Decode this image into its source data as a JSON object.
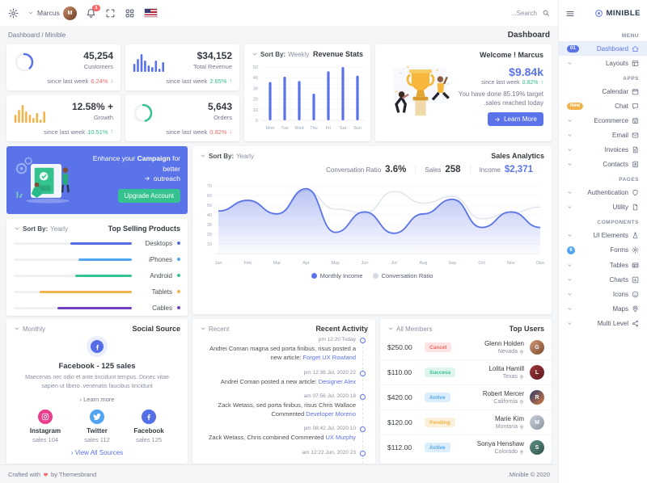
{
  "brand": {
    "name": "MINIBLE"
  },
  "topbar": {
    "search_placeholder": "...Search",
    "user_name": "Marcus",
    "notification_count": "3"
  },
  "breadcrumb": {
    "path": "Dashboard / Minible"
  },
  "page": {
    "title": "Dashboard"
  },
  "colors": {
    "primary": "#5b73e8",
    "success": "#34c38f",
    "danger": "#f46a6a",
    "warning": "#f1b44c",
    "info": "#50a5f1"
  },
  "stats": {
    "cards": [
      {
        "value": "45,254",
        "label": "Customers",
        "since": "since last week",
        "delta": "6.24%",
        "direction": "down",
        "chart": {
          "type": "radial",
          "percent": 38,
          "color": "#5b73e8"
        }
      },
      {
        "value": "$34,152",
        "label": "Total Revenue",
        "since": "since last week",
        "delta": "2.65%",
        "direction": "up",
        "chart": {
          "type": "bars",
          "color": "#5b73e8",
          "values": [
            5,
            8,
            11,
            7,
            4,
            3,
            7,
            2,
            6
          ]
        }
      },
      {
        "value": "12.58% +",
        "label": "Growth",
        "since": "since last week",
        "delta": "10.51%",
        "direction": "up",
        "chart": {
          "type": "bars",
          "color": "#f1b44c",
          "values": [
            5,
            8,
            11,
            7,
            5,
            3,
            6,
            2,
            7
          ]
        }
      },
      {
        "value": "5,643",
        "label": "Orders",
        "since": "since last week",
        "delta": "0.82%",
        "direction": "down",
        "chart": {
          "type": "radial",
          "percent": 45,
          "color": "#34c38f"
        }
      }
    ]
  },
  "revenue_stats": {
    "title": "Revenue Stats",
    "sort_by": "Sort By:",
    "sort_value": "Weekly"
  },
  "welcome": {
    "title": "Welcome ! Marcus",
    "amount": "$9.84k",
    "since": "since last week",
    "delta": "0.82%",
    "line1": "You have done 85.19% target",
    "line2": ".sales reached today",
    "button_label": "Learn More"
  },
  "campaign": {
    "text_pre": "Enhance your",
    "text_bold": "Campaign",
    "text_post": "for better",
    "text_line2": "outreach",
    "button_label": "Upgrade Account"
  },
  "top_selling": {
    "title": "Top Selling Products",
    "sort_by": "Sort By:",
    "sort_value": "Yearly",
    "products": [
      {
        "name": "Desktops",
        "pct": 52,
        "color": "#556ee6"
      },
      {
        "name": "iPhones",
        "pct": 45,
        "color": "#50a5f1"
      },
      {
        "name": "Android",
        "pct": 48,
        "color": "#34c38f"
      },
      {
        "name": "Tablets",
        "pct": 78,
        "color": "#f1b44c"
      },
      {
        "name": "Cables",
        "pct": 63,
        "color": "#6f42c1"
      }
    ]
  },
  "sales_analytics": {
    "title": "Sales Analytics",
    "sort_by": "Sort By:",
    "sort_value": "Yearly",
    "metrics": [
      {
        "label": "Conversation Ratio",
        "value": "3.6%"
      },
      {
        "label": "Sales",
        "value": "258"
      },
      {
        "label": "Income",
        "value": "$2,371"
      }
    ]
  },
  "social": {
    "title": "Social Source",
    "sort_value": "Monthly",
    "headline": "Facebook - 125 sales",
    "description": "Maecenas nec odio et ante tincidunt tempus. Donec vitae sapien ut libero .venenatis faucibus tincidunt",
    "learn_more": "Learn more",
    "view_all": "View All Sources",
    "networks": [
      {
        "name": "Instagram",
        "sales": "sales 104",
        "color": "#e83e8c",
        "icon": "instagram"
      },
      {
        "name": "Twitter",
        "sales": "sales 112",
        "color": "#50a5f1",
        "icon": "twitter"
      },
      {
        "name": "Facebook",
        "sales": "sales 125",
        "color": "#556ee6",
        "icon": "facebook"
      }
    ]
  },
  "activity": {
    "title": "Recent Activity",
    "sort_value": "Recent",
    "items": [
      {
        "time": "pm 12:20 Today",
        "text": "Andrei Coman magna sed porta finibus, risus posted a new article:",
        "link": "Forget UX Rowland"
      },
      {
        "time": "pm 12:36 Jul, 2020 22",
        "text": "Andrei Coman posted a new article:",
        "link": "Designer Alex"
      },
      {
        "time": "am 07:56 Jul, 2020 18",
        "text": "Zack Wetass, sed porta finibus, risus Chris Wallace Commented",
        "link": "Developer Moreno"
      },
      {
        "time": "pm 08:42 Jul, 2020 10",
        "text": "Zack Wetass, Chris combined Commented",
        "link": "UX Murphy"
      },
      {
        "time": "am 12:22 Jun, 2020 23",
        "text": "",
        "link": ""
      }
    ]
  },
  "top_users": {
    "title": "Top Users",
    "sort_value": "All Members",
    "rows": [
      {
        "amount": "$250.00",
        "status": "Cancel",
        "status_type": "danger",
        "name": "Glenn Holden",
        "location": "Nevada"
      },
      {
        "amount": "$110.00",
        "status": "Success",
        "status_type": "success",
        "name": "Lolita Hamill",
        "location": "Texas"
      },
      {
        "amount": "$420.00",
        "status": "Active",
        "status_type": "info",
        "name": "Robert Mercer",
        "location": "California"
      },
      {
        "amount": "$120.00",
        "status": "Pending",
        "status_type": "warning",
        "name": "Marie Kim",
        "location": "Montana"
      },
      {
        "amount": "$112.00",
        "status": "Active",
        "status_type": "info",
        "name": "Sonya Henshaw",
        "location": "Colorado"
      }
    ]
  },
  "sidebar": {
    "sections": [
      {
        "label": "MENU",
        "items": [
          {
            "label": "Dashboard",
            "icon": "home",
            "active": true,
            "badge": {
              "text": "01",
              "type": "pill-primary"
            }
          },
          {
            "label": "Layouts",
            "icon": "layout",
            "chevron": true
          }
        ]
      },
      {
        "label": "APPS",
        "items": [
          {
            "label": "Calendar",
            "icon": "calendar"
          },
          {
            "label": "Chat",
            "icon": "chat",
            "badge": {
              "text": "New",
              "type": "pill-warning"
            }
          },
          {
            "label": "Ecommerce",
            "icon": "store",
            "chevron": true
          },
          {
            "label": "Email",
            "icon": "mail",
            "chevron": true
          },
          {
            "label": "Invoices",
            "icon": "invoice",
            "chevron": true
          },
          {
            "label": "Contacts",
            "icon": "contacts",
            "chevron": true
          }
        ]
      },
      {
        "label": "PAGES",
        "items": [
          {
            "label": "Authentication",
            "icon": "shield",
            "chevron": true
          },
          {
            "label": "Utility",
            "icon": "file",
            "chevron": true
          }
        ]
      },
      {
        "label": "COMPONENTS",
        "items": [
          {
            "label": "UI Elements",
            "icon": "beaker",
            "chevron": true
          },
          {
            "label": "Forms",
            "icon": "gear",
            "badge": {
              "text": "6",
              "type": "circle-info"
            }
          },
          {
            "label": "Tables",
            "icon": "table",
            "chevron": true
          },
          {
            "label": "Charts",
            "icon": "chart",
            "chevron": true
          },
          {
            "label": "Icons",
            "icon": "smile",
            "chevron": true
          },
          {
            "label": "Maps",
            "icon": "map-pin",
            "chevron": true
          },
          {
            "label": "Multi Level",
            "icon": "share",
            "chevron": true
          }
        ]
      }
    ]
  },
  "footer": {
    "left_pre": "Crafted with",
    "left_post": "by Themesbrand",
    "right": ".Minible © 2020"
  },
  "chart_data": [
    {
      "id": "revenue-stats",
      "type": "bar",
      "title": "Revenue Stats",
      "categories": [
        "Mon",
        "Tue",
        "Wed",
        "Thu",
        "Fri",
        "Sat",
        "Sun"
      ],
      "values": [
        36,
        41,
        37,
        25,
        46,
        50,
        42
      ],
      "ylim": [
        0,
        50
      ],
      "yticks": [
        0,
        10,
        20,
        30,
        40,
        50
      ],
      "color": "#5b73e8",
      "grid": true
    },
    {
      "id": "sales-analytics",
      "type": "area",
      "title": "Sales Analytics",
      "x": [
        "Jan",
        "Feb",
        "Mar",
        "Apr",
        "May",
        "Jun",
        "Jul",
        "Aug",
        "Sep",
        "Oct",
        "Nov",
        "Des"
      ],
      "ylim": [
        0,
        75
      ],
      "yticks": [
        10,
        20,
        30,
        40,
        50,
        60,
        70
      ],
      "legend_position": "bottom",
      "series": [
        {
          "name": "Monthly Income",
          "color": "#5b73e8",
          "values": [
            44,
            55,
            41,
            67,
            22,
            43,
            21,
            41,
            56,
            27,
            43,
            27
          ]
        },
        {
          "name": "Conversation Ratio",
          "color": "#e2e6ee",
          "values": [
            44,
            54,
            41,
            65,
            46,
            42,
            64,
            52,
            59,
            36,
            42,
            48
          ]
        }
      ]
    }
  ]
}
